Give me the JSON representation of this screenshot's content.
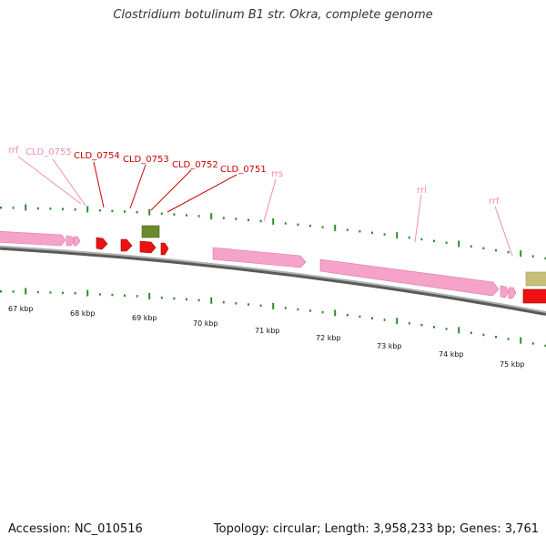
{
  "title": "Clostridium botulinum B1 str. Okra, complete genome",
  "footer": {
    "accession": "Accession: NC_010516",
    "summary": "Topology: circular; Length: 3,958,233 bp; Genes: 3,761"
  },
  "colors": {
    "rna_label": "#f08cb4",
    "cds_label": "#cc0000",
    "rna_feature": "#f5a3c8",
    "cds_feature": "#ee1111",
    "gene_green": "#6b8a2e",
    "gene_tan": "#c8c07a",
    "backbone": "#8a8a8a",
    "tick_green": "#2e8b2e"
  },
  "feature_labels": [
    {
      "text": "rrf",
      "type": "rna"
    },
    {
      "text": "CLD_0755",
      "type": "rna"
    },
    {
      "text": "CLD_0754",
      "type": "cds"
    },
    {
      "text": "CLD_0753",
      "type": "cds"
    },
    {
      "text": "CLD_0752",
      "type": "cds"
    },
    {
      "text": "CLD_0751",
      "type": "cds"
    },
    {
      "text": "rrs",
      "type": "rna"
    },
    {
      "text": "rrl",
      "type": "rna"
    },
    {
      "text": "rrf",
      "type": "rna"
    }
  ],
  "scale_ticks": [
    "67 kbp",
    "68 kbp",
    "69 kbp",
    "70 kbp",
    "71 kbp",
    "72 kbp",
    "73 kbp",
    "74 kbp",
    "75 kbp"
  ]
}
